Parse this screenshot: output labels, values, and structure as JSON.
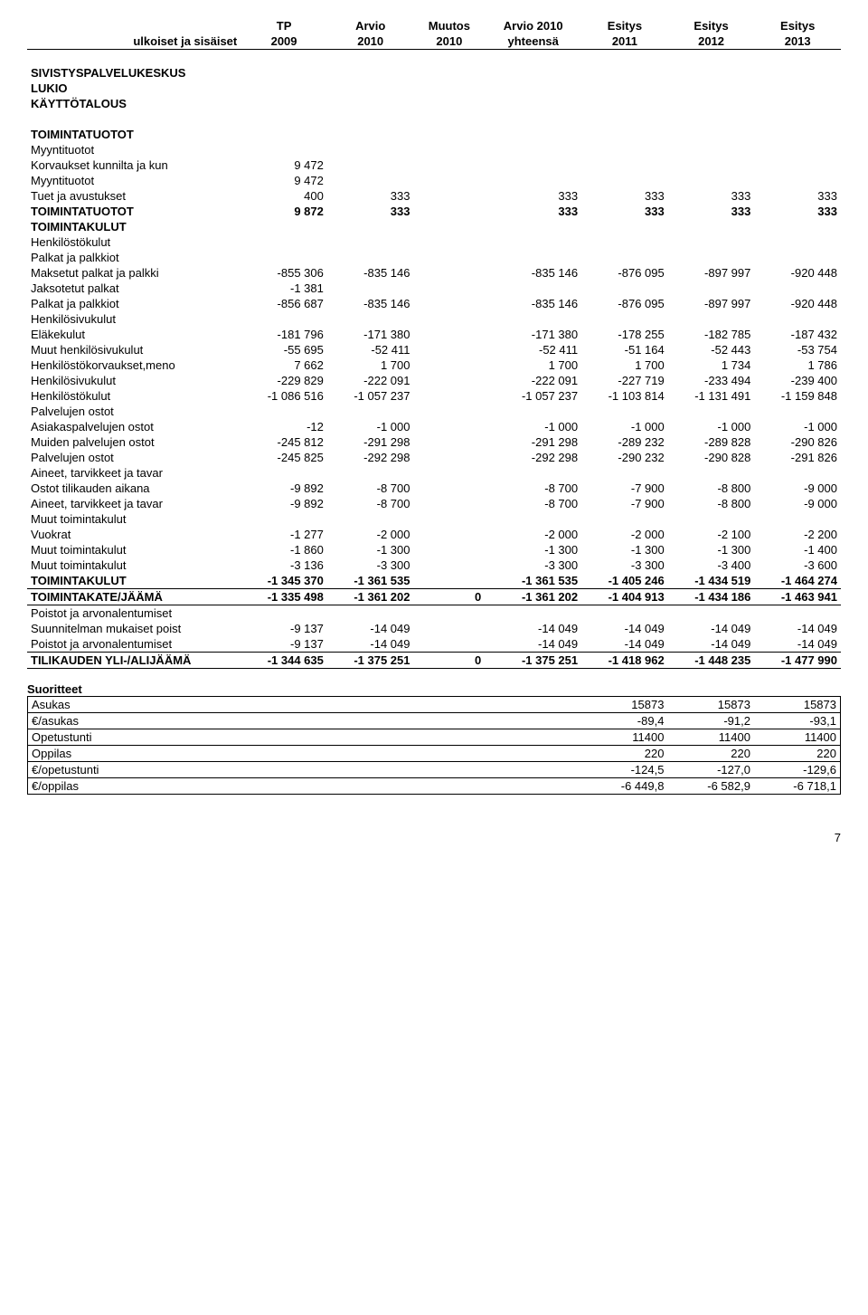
{
  "header": {
    "row1": [
      "",
      "TP",
      "Arvio",
      "Muutos",
      "Arvio 2010",
      "Esitys",
      "Esitys",
      "Esitys"
    ],
    "row2": [
      "ulkoiset ja sisäiset",
      "2009",
      "2010",
      "2010",
      "yhteensä",
      "2011",
      "2012",
      "2013"
    ]
  },
  "titles": [
    "SIVISTYSPALVELUKESKUS",
    "LUKIO",
    "KÄYTTÖTALOUS"
  ],
  "main_rows": [
    {
      "label": "TOIMINTATUOTOT",
      "bold": true,
      "vals": [
        "",
        "",
        "",
        "",
        "",
        "",
        ""
      ]
    },
    {
      "label": "Myyntituotot",
      "vals": [
        "",
        "",
        "",
        "",
        "",
        "",
        ""
      ]
    },
    {
      "label": "Korvaukset kunnilta ja kun",
      "vals": [
        "9 472",
        "",
        "",
        "",
        "",
        "",
        ""
      ]
    },
    {
      "label": "Myyntituotot",
      "vals": [
        "9 472",
        "",
        "",
        "",
        "",
        "",
        ""
      ]
    },
    {
      "label": "Tuet ja avustukset",
      "vals": [
        "400",
        "333",
        "",
        "333",
        "333",
        "333",
        "333"
      ]
    },
    {
      "label": "TOIMINTATUOTOT",
      "bold": true,
      "vals": [
        "9 872",
        "333",
        "",
        "333",
        "333",
        "333",
        "333"
      ]
    },
    {
      "label": "TOIMINTAKULUT",
      "bold": true,
      "vals": [
        "",
        "",
        "",
        "",
        "",
        "",
        ""
      ]
    },
    {
      "label": "Henkilöstökulut",
      "vals": [
        "",
        "",
        "",
        "",
        "",
        "",
        ""
      ]
    },
    {
      "label": "Palkat ja palkkiot",
      "vals": [
        "",
        "",
        "",
        "",
        "",
        "",
        ""
      ]
    },
    {
      "label": "Maksetut palkat ja palkki",
      "vals": [
        "-855 306",
        "-835 146",
        "",
        "-835 146",
        "-876 095",
        "-897 997",
        "-920 448"
      ]
    },
    {
      "label": "Jaksotetut palkat",
      "vals": [
        "-1 381",
        "",
        "",
        "",
        "",
        "",
        ""
      ]
    },
    {
      "label": "Palkat ja palkkiot",
      "vals": [
        "-856 687",
        "-835 146",
        "",
        "-835 146",
        "-876 095",
        "-897 997",
        "-920 448"
      ]
    },
    {
      "label": "Henkilösivukulut",
      "vals": [
        "",
        "",
        "",
        "",
        "",
        "",
        ""
      ]
    },
    {
      "label": "Eläkekulut",
      "vals": [
        "-181 796",
        "-171 380",
        "",
        "-171 380",
        "-178 255",
        "-182 785",
        "-187 432"
      ]
    },
    {
      "label": "Muut henkilösivukulut",
      "vals": [
        "-55 695",
        "-52 411",
        "",
        "-52 411",
        "-51 164",
        "-52 443",
        "-53 754"
      ]
    },
    {
      "label": "Henkilöstökorvaukset,meno",
      "vals": [
        "7 662",
        "1 700",
        "",
        "1 700",
        "1 700",
        "1 734",
        "1 786"
      ]
    },
    {
      "label": "Henkilösivukulut",
      "vals": [
        "-229 829",
        "-222 091",
        "",
        "-222 091",
        "-227 719",
        "-233 494",
        "-239 400"
      ]
    },
    {
      "label": "Henkilöstökulut",
      "vals": [
        "-1 086 516",
        "-1 057 237",
        "",
        "-1 057 237",
        "-1 103 814",
        "-1 131 491",
        "-1 159 848"
      ]
    },
    {
      "label": "Palvelujen ostot",
      "vals": [
        "",
        "",
        "",
        "",
        "",
        "",
        ""
      ]
    },
    {
      "label": "Asiakaspalvelujen ostot",
      "vals": [
        "-12",
        "-1 000",
        "",
        "-1 000",
        "-1 000",
        "-1 000",
        "-1 000"
      ]
    },
    {
      "label": "Muiden palvelujen ostot",
      "vals": [
        "-245 812",
        "-291 298",
        "",
        "-291 298",
        "-289 232",
        "-289 828",
        "-290 826"
      ]
    },
    {
      "label": "Palvelujen ostot",
      "vals": [
        "-245 825",
        "-292 298",
        "",
        "-292 298",
        "-290 232",
        "-290 828",
        "-291 826"
      ]
    },
    {
      "label": "Aineet, tarvikkeet ja tavar",
      "vals": [
        "",
        "",
        "",
        "",
        "",
        "",
        ""
      ]
    },
    {
      "label": "Ostot tilikauden aikana",
      "vals": [
        "-9 892",
        "-8 700",
        "",
        "-8 700",
        "-7 900",
        "-8 800",
        "-9 000"
      ]
    },
    {
      "label": "Aineet, tarvikkeet ja tavar",
      "vals": [
        "-9 892",
        "-8 700",
        "",
        "-8 700",
        "-7 900",
        "-8 800",
        "-9 000"
      ]
    },
    {
      "label": "Muut toimintakulut",
      "vals": [
        "",
        "",
        "",
        "",
        "",
        "",
        ""
      ]
    },
    {
      "label": "Vuokrat",
      "vals": [
        "-1 277",
        "-2 000",
        "",
        "-2 000",
        "-2 000",
        "-2 100",
        "-2 200"
      ]
    },
    {
      "label": "Muut toimintakulut",
      "vals": [
        "-1 860",
        "-1 300",
        "",
        "-1 300",
        "-1 300",
        "-1 300",
        "-1 400"
      ]
    },
    {
      "label": "Muut toimintakulut",
      "vals": [
        "-3 136",
        "-3 300",
        "",
        "-3 300",
        "-3 300",
        "-3 400",
        "-3 600"
      ]
    },
    {
      "label": "TOIMINTAKULUT",
      "bold": true,
      "vals": [
        "-1 345 370",
        "-1 361 535",
        "",
        "-1 361 535",
        "-1 405 246",
        "-1 434 519",
        "-1 464 274"
      ]
    },
    {
      "label": "TOIMINTAKATE/JÄÄMÄ",
      "bold": true,
      "border": "both",
      "vals": [
        "-1 335 498",
        "-1 361 202",
        "0",
        "-1 361 202",
        "-1 404 913",
        "-1 434 186",
        "-1 463 941"
      ]
    },
    {
      "label": "Poistot ja arvonalentumiset",
      "vals": [
        "",
        "",
        "",
        "",
        "",
        "",
        ""
      ]
    },
    {
      "label": "Suunnitelman mukaiset poist",
      "vals": [
        "-9 137",
        "-14 049",
        "",
        "-14 049",
        "-14 049",
        "-14 049",
        "-14 049"
      ]
    },
    {
      "label": "Poistot ja arvonalentumiset",
      "vals": [
        "-9 137",
        "-14 049",
        "",
        "-14 049",
        "-14 049",
        "-14 049",
        "-14 049"
      ]
    },
    {
      "label": "TILIKAUDEN YLI-/ALIJÄÄMÄ",
      "bold": true,
      "border": "both",
      "vals": [
        "-1 344 635",
        "-1 375 251",
        "0",
        "-1 375 251",
        "-1 418 962",
        "-1 448 235",
        "-1 477 990"
      ]
    }
  ],
  "suoritteet_title": "Suoritteet",
  "suoritteet_rows": [
    {
      "label": "Asukas",
      "vals": [
        "15873",
        "15873",
        "15873"
      ]
    },
    {
      "label": "€/asukas",
      "vals": [
        "-89,4",
        "-91,2",
        "-93,1"
      ]
    },
    {
      "label": "Opetustunti",
      "vals": [
        "11400",
        "11400",
        "11400"
      ]
    },
    {
      "label": "Oppilas",
      "vals": [
        "220",
        "220",
        "220"
      ]
    },
    {
      "label": "€/opetustunti",
      "vals": [
        "-124,5",
        "-127,0",
        "-129,6"
      ]
    },
    {
      "label": "€/oppilas",
      "vals": [
        "-6 449,8",
        "-6 582,9",
        "-6 718,1"
      ]
    }
  ],
  "page_number": "7"
}
